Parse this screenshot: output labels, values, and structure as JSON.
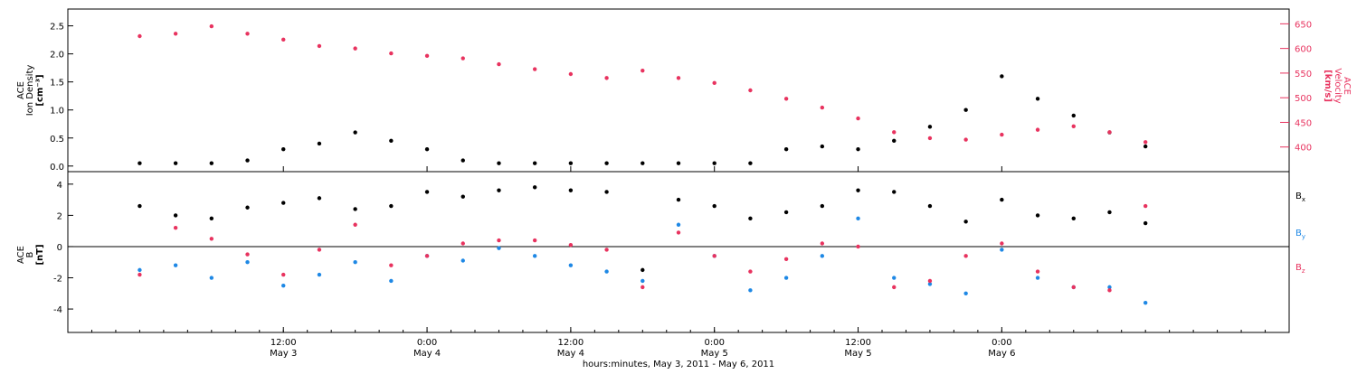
{
  "chart_data": [
    {
      "type": "scatter",
      "panel": "top",
      "y_label_left": [
        "ACE",
        "Ion Density",
        "[cm⁻³]"
      ],
      "y_label_right": [
        "ACE",
        "Velocity",
        "[km/s]"
      ],
      "ylim_left": [
        -0.1,
        2.8
      ],
      "ylim_right": [
        350,
        680
      ],
      "yticks_left": [
        "0.0",
        "0.5",
        "1.0",
        "1.5",
        "2.0",
        "2.5"
      ],
      "yticks_right": [
        "400",
        "450",
        "500",
        "550",
        "600",
        "650"
      ],
      "colors": {
        "density": "#000000",
        "velocity": "#e8335f"
      },
      "series": [
        {
          "axis": "left",
          "x": [
            0,
            3,
            6,
            9,
            12,
            15,
            18,
            21,
            24,
            27,
            30,
            33,
            36,
            39,
            42,
            45,
            48,
            51,
            54,
            57,
            60,
            63,
            66,
            69,
            72,
            75,
            78,
            81,
            84
          ],
          "y": [
            0.05,
            0.05,
            0.05,
            0.1,
            0.3,
            0.4,
            0.6,
            0.45,
            0.3,
            0.1,
            0.05,
            0.05,
            0.05,
            0.05,
            0.05,
            0.05,
            0.05,
            0.05,
            0.3,
            0.35,
            0.3,
            0.45,
            0.7,
            1.0,
            1.6,
            1.2,
            0.9,
            0.6,
            0.35
          ]
        },
        {
          "axis": "right",
          "x": [
            0,
            3,
            6,
            9,
            12,
            15,
            18,
            21,
            24,
            27,
            30,
            33,
            36,
            39,
            42,
            45,
            48,
            51,
            54,
            57,
            60,
            63,
            66,
            69,
            72,
            75,
            78,
            81,
            84
          ],
          "y": [
            625,
            630,
            645,
            630,
            618,
            605,
            600,
            590,
            585,
            580,
            568,
            558,
            548,
            540,
            555,
            540,
            530,
            515,
            498,
            480,
            458,
            430,
            418,
            415,
            425,
            435,
            442,
            430,
            410
          ]
        }
      ]
    },
    {
      "type": "scatter",
      "panel": "bottom",
      "y_label_left": [
        "ACE",
        "B",
        "[nT]"
      ],
      "ylim": [
        -5.5,
        4.8
      ],
      "yticks": [
        "-4",
        "-2",
        "0",
        "2",
        "4"
      ],
      "legend": [
        "Bx",
        "By",
        "Bz"
      ],
      "colors": {
        "Bx": "#000000",
        "By": "#1e88e5",
        "Bz": "#e8335f"
      },
      "series": [
        {
          "name": "Bx",
          "x": [
            0,
            3,
            6,
            9,
            12,
            15,
            18,
            21,
            24,
            27,
            30,
            33,
            36,
            39,
            42,
            45,
            48,
            51,
            54,
            57,
            60,
            63,
            66,
            69,
            72,
            75,
            78,
            81,
            84
          ],
          "y": [
            2.6,
            2.0,
            1.8,
            2.5,
            2.8,
            3.1,
            2.4,
            2.6,
            3.5,
            3.2,
            3.6,
            3.8,
            3.6,
            3.5,
            -1.5,
            3.0,
            2.6,
            1.8,
            2.2,
            2.6,
            3.6,
            3.5,
            2.6,
            1.6,
            3.0,
            2.0,
            1.8,
            2.2,
            1.5
          ]
        },
        {
          "name": "By",
          "x": [
            0,
            3,
            6,
            9,
            12,
            15,
            18,
            21,
            24,
            27,
            30,
            33,
            36,
            39,
            42,
            45,
            48,
            51,
            54,
            57,
            60,
            63,
            66,
            69,
            72,
            75,
            78,
            81,
            84
          ],
          "y": [
            -1.5,
            -1.2,
            -2.0,
            -1.0,
            -2.5,
            -1.8,
            -1.0,
            -2.2,
            -0.6,
            -0.9,
            -0.1,
            -0.6,
            -1.2,
            -1.6,
            -2.2,
            1.4,
            -0.6,
            -2.8,
            -2.0,
            -0.6,
            1.8,
            -2.0,
            -2.4,
            -3.0,
            -0.2,
            -2.0,
            -2.6,
            -2.6,
            -3.6
          ]
        },
        {
          "name": "Bz",
          "x": [
            0,
            3,
            6,
            9,
            12,
            15,
            18,
            21,
            24,
            27,
            30,
            33,
            36,
            39,
            42,
            45,
            48,
            51,
            54,
            57,
            60,
            63,
            66,
            69,
            72,
            75,
            78,
            81,
            84
          ],
          "y": [
            -1.8,
            1.2,
            0.5,
            -0.5,
            -1.8,
            -0.2,
            1.4,
            -1.2,
            -0.6,
            0.2,
            0.4,
            0.4,
            0.1,
            -0.2,
            -2.6,
            0.9,
            -0.6,
            -1.6,
            -0.8,
            0.2,
            0.0,
            -2.6,
            -2.2,
            -0.6,
            0.2,
            -1.6,
            -2.6,
            -2.8,
            2.6
          ]
        }
      ]
    }
  ],
  "x_axis": {
    "xlim": [
      -6,
      96
    ],
    "ticks": [
      {
        "x": 12,
        "time": "12:00",
        "date": "May 3"
      },
      {
        "x": 24,
        "time": "0:00",
        "date": "May 4"
      },
      {
        "x": 36,
        "time": "12:00",
        "date": "May 4"
      },
      {
        "x": 48,
        "time": "0:00",
        "date": "May 5"
      },
      {
        "x": 60,
        "time": "12:00",
        "date": "May 5"
      },
      {
        "x": 72,
        "time": "0:00",
        "date": "May 6"
      }
    ],
    "title": "hours:minutes,  May  3, 2011 - May  6, 2011"
  },
  "legend_labels": {
    "Bx": "B",
    "By": "B",
    "Bz": "B",
    "Bx_sub": "x",
    "By_sub": "y",
    "Bz_sub": "z"
  }
}
